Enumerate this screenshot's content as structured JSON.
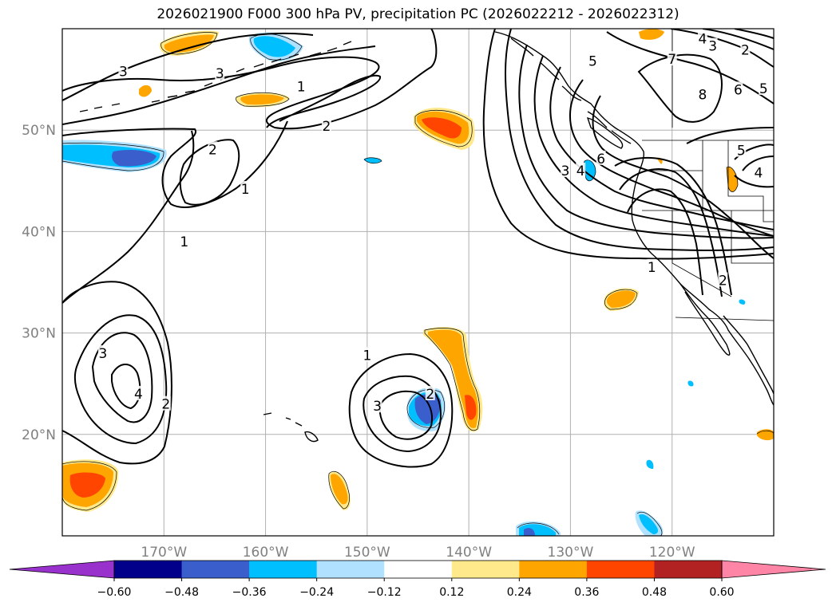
{
  "title": "2026021900 F000 300 hPa PV, precipitation PC (2026022212 - 2026022312)",
  "map": {
    "lon_range": [
      -180,
      -110
    ],
    "lat_range": [
      10,
      60
    ],
    "lon_ticks": [
      {
        "value": -170,
        "label": "170°W"
      },
      {
        "value": -160,
        "label": "160°W"
      },
      {
        "value": -150,
        "label": "150°W"
      },
      {
        "value": -140,
        "label": "140°W"
      },
      {
        "value": -130,
        "label": "130°W"
      },
      {
        "value": -120,
        "label": "120°W"
      }
    ],
    "lat_ticks": [
      {
        "value": 20,
        "label": "20°N"
      },
      {
        "value": 30,
        "label": "30°N"
      },
      {
        "value": 40,
        "label": "40°N"
      },
      {
        "value": 50,
        "label": "50°N"
      }
    ],
    "gridlines": true
  },
  "colorbar": {
    "ticks": [
      "−0.60",
      "−0.48",
      "−0.36",
      "−0.24",
      "−0.12",
      "0.12",
      "0.24",
      "0.36",
      "0.48",
      "0.60"
    ],
    "colors": [
      "#9932cc",
      "#00008b",
      "#3a5fcd",
      "#00bfff",
      "#b0e2ff",
      "#ffffff",
      "#ffe98a",
      "#ffa500",
      "#ff4500",
      "#b22222",
      "#ff85a6"
    ]
  },
  "contour_labels": [
    {
      "text": "3",
      "lon": -174.0,
      "lat": 55.8
    },
    {
      "text": "3",
      "lon": -164.5,
      "lat": 55.6
    },
    {
      "text": "1",
      "lon": -156.5,
      "lat": 54.3
    },
    {
      "text": "2",
      "lon": -154.0,
      "lat": 50.4
    },
    {
      "text": "2",
      "lon": -165.2,
      "lat": 48.1
    },
    {
      "text": "1",
      "lon": -162.0,
      "lat": 44.2
    },
    {
      "text": "1",
      "lon": -168.0,
      "lat": 39.0
    },
    {
      "text": "3",
      "lon": -176.0,
      "lat": 28.0
    },
    {
      "text": "4",
      "lon": -172.5,
      "lat": 24.0
    },
    {
      "text": "2",
      "lon": -169.8,
      "lat": 23.0
    },
    {
      "text": "1",
      "lon": -150.0,
      "lat": 27.8
    },
    {
      "text": "3",
      "lon": -149.0,
      "lat": 22.8
    },
    {
      "text": "2",
      "lon": -143.8,
      "lat": 24.0
    },
    {
      "text": "3",
      "lon": -130.5,
      "lat": 46.0
    },
    {
      "text": "4",
      "lon": -129.0,
      "lat": 46.0
    },
    {
      "text": "6",
      "lon": -127.0,
      "lat": 47.2
    },
    {
      "text": "5",
      "lon": -127.8,
      "lat": 56.8
    },
    {
      "text": "7",
      "lon": -120.0,
      "lat": 57.0
    },
    {
      "text": "8",
      "lon": -117.0,
      "lat": 53.5
    },
    {
      "text": "6",
      "lon": -113.5,
      "lat": 54.0
    },
    {
      "text": "5",
      "lon": -111.0,
      "lat": 54.1
    },
    {
      "text": "5",
      "lon": -113.2,
      "lat": 48.0
    },
    {
      "text": "4",
      "lon": -111.5,
      "lat": 45.8
    },
    {
      "text": "3",
      "lon": -116.0,
      "lat": 58.3
    },
    {
      "text": "2",
      "lon": -112.8,
      "lat": 57.9
    },
    {
      "text": "4",
      "lon": -117.0,
      "lat": 59.0
    },
    {
      "text": "1",
      "lon": -122.0,
      "lat": 36.5
    },
    {
      "text": "2",
      "lon": -115.0,
      "lat": 35.2
    }
  ]
}
